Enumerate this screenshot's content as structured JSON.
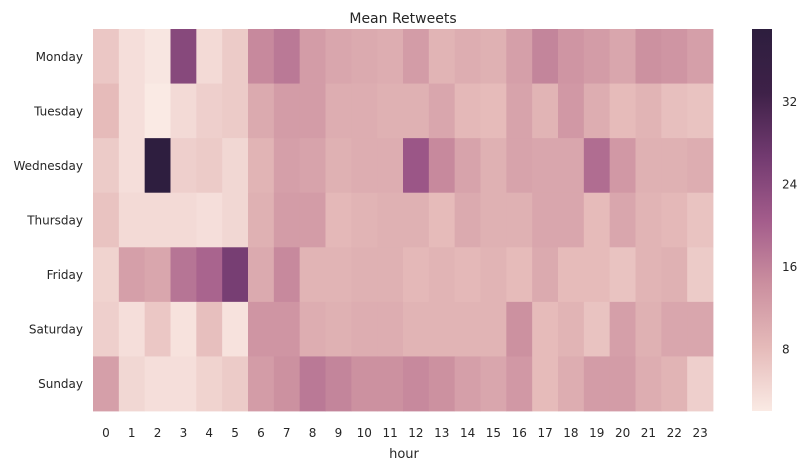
{
  "chart_data": {
    "type": "heatmap",
    "title": "Mean Retweets",
    "xlabel": "hour",
    "ylabel": "",
    "x": [
      "0",
      "1",
      "2",
      "3",
      "4",
      "5",
      "6",
      "7",
      "8",
      "9",
      "10",
      "11",
      "12",
      "13",
      "14",
      "15",
      "16",
      "17",
      "18",
      "19",
      "20",
      "21",
      "22",
      "23"
    ],
    "y": [
      "Monday",
      "Tuesday",
      "Wednesday",
      "Thursday",
      "Friday",
      "Saturday",
      "Sunday"
    ],
    "values": [
      [
        6.5,
        3.5,
        2.5,
        24.0,
        4.0,
        6.0,
        15.0,
        17.0,
        12.5,
        11.0,
        10.5,
        10.0,
        12.5,
        9.0,
        10.0,
        9.5,
        12.0,
        15.5,
        13.5,
        12.5,
        11.0,
        14.0,
        13.5,
        12.0
      ],
      [
        8.0,
        3.5,
        2.0,
        4.0,
        5.5,
        6.0,
        10.5,
        12.5,
        12.5,
        10.0,
        10.0,
        9.5,
        9.5,
        11.0,
        8.5,
        8.0,
        11.5,
        9.0,
        13.0,
        10.0,
        8.0,
        9.0,
        7.5,
        7.0
      ],
      [
        6.0,
        3.5,
        38.5,
        5.5,
        6.0,
        4.5,
        9.0,
        12.0,
        11.5,
        9.5,
        10.0,
        10.0,
        21.5,
        15.0,
        11.5,
        9.5,
        11.5,
        11.0,
        11.0,
        18.5,
        13.0,
        9.5,
        9.5,
        10.0
      ],
      [
        7.0,
        4.0,
        4.0,
        4.0,
        3.5,
        4.5,
        9.5,
        12.5,
        12.5,
        8.5,
        9.0,
        9.5,
        9.5,
        8.0,
        10.5,
        9.5,
        9.5,
        11.0,
        11.0,
        8.0,
        11.0,
        9.0,
        8.5,
        7.0
      ],
      [
        5.0,
        12.0,
        11.0,
        17.5,
        19.5,
        26.0,
        10.5,
        15.0,
        9.0,
        9.0,
        9.5,
        9.5,
        8.5,
        9.0,
        8.5,
        9.0,
        8.0,
        10.5,
        8.0,
        8.0,
        7.0,
        9.0,
        9.5,
        6.0
      ],
      [
        5.5,
        3.5,
        6.5,
        3.0,
        7.5,
        3.0,
        13.5,
        13.5,
        10.0,
        9.5,
        10.0,
        10.0,
        9.0,
        9.0,
        9.0,
        9.0,
        14.0,
        8.0,
        9.0,
        7.0,
        12.0,
        9.5,
        11.0,
        11.0
      ],
      [
        12.0,
        4.5,
        3.5,
        3.5,
        5.0,
        6.0,
        12.5,
        14.0,
        17.0,
        15.5,
        14.0,
        14.0,
        15.0,
        14.0,
        12.0,
        11.0,
        13.0,
        8.0,
        10.0,
        12.5,
        12.5,
        10.0,
        9.0,
        5.5
      ]
    ],
    "vmin": 2.0,
    "vmax": 39.0,
    "colorbar_ticks": [
      8,
      16,
      24,
      32
    ],
    "colormap": [
      "#faeae4",
      "#e5bab9",
      "#cb8f9f",
      "#a35c8b",
      "#723a70",
      "#3e2148",
      "#2d1e3e"
    ]
  }
}
